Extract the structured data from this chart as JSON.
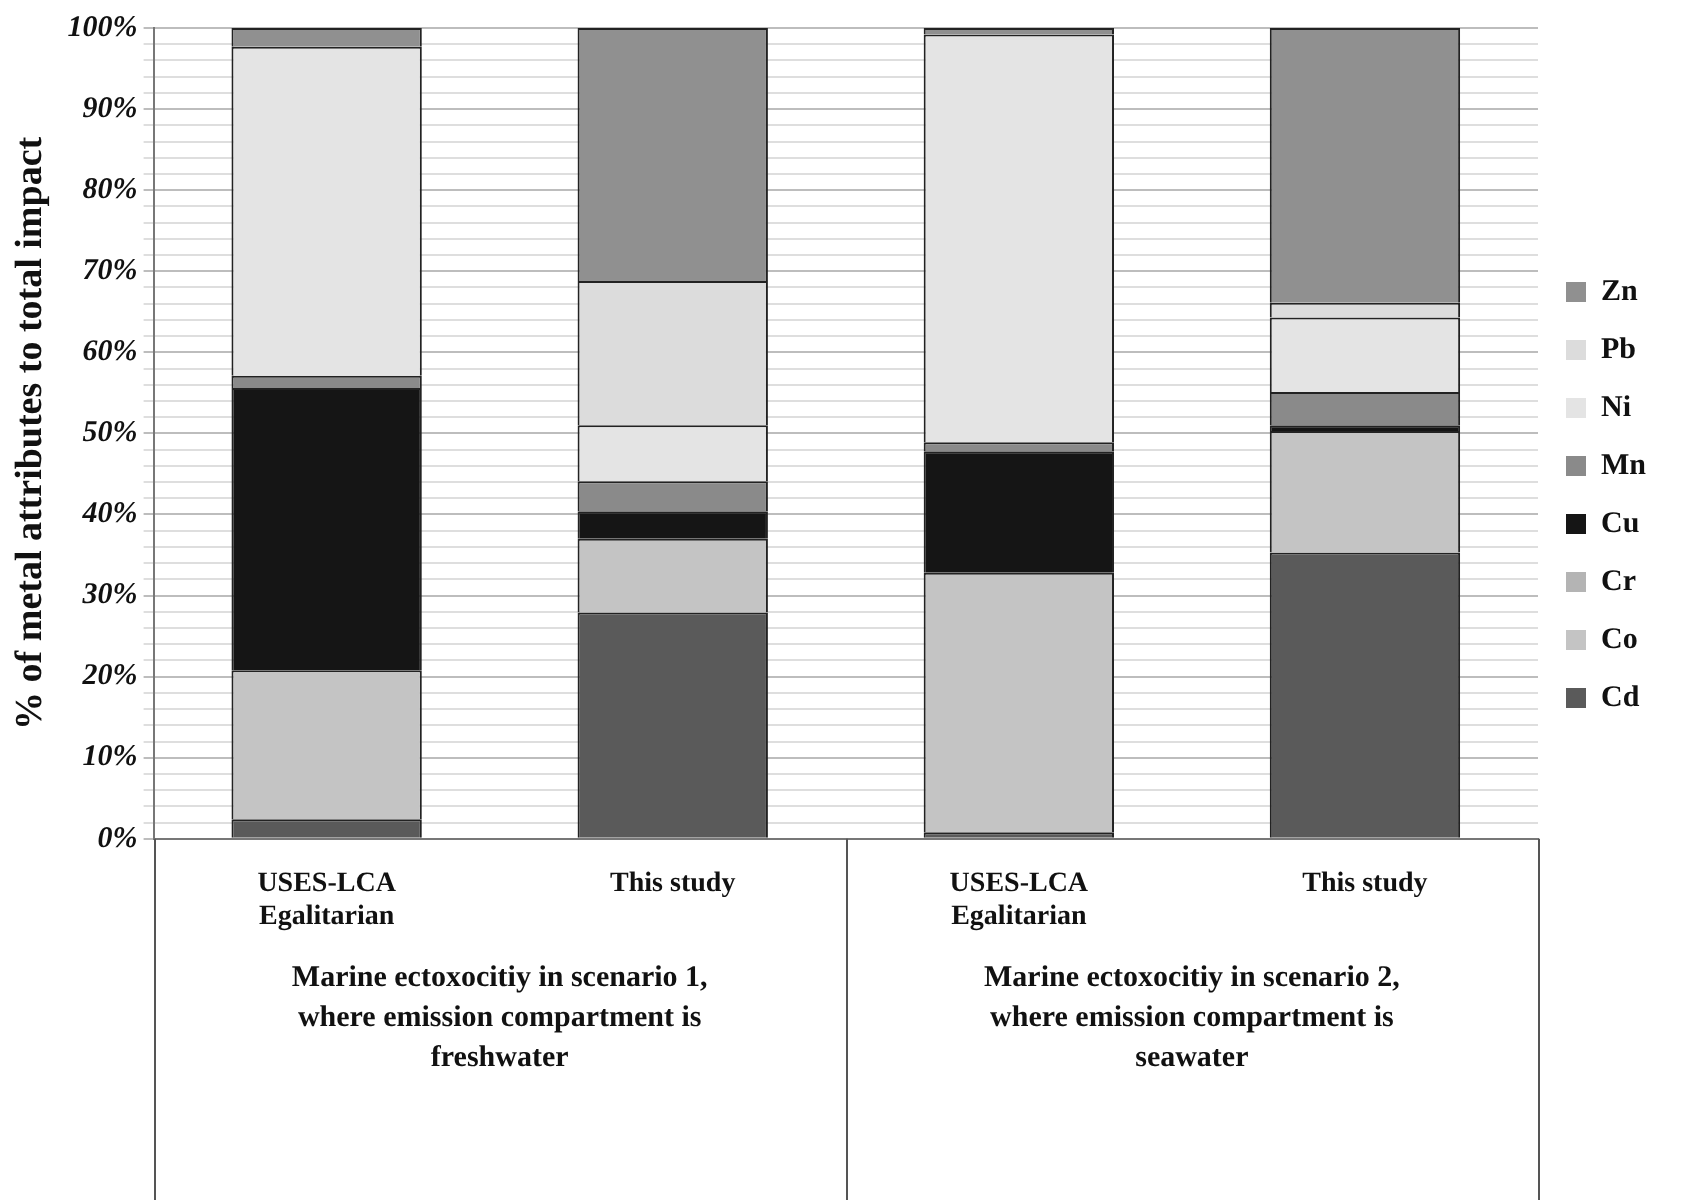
{
  "chart_data": {
    "type": "bar",
    "stacked": true,
    "ylabel": "% of metal attributes to total impact",
    "categories": [
      "USES-LCA\nEgalitarian",
      "This study",
      "USES-LCA\nEgalitarian",
      "This study"
    ],
    "series": [
      {
        "name": "Cd",
        "color": "#5a5a5a",
        "values": [
          2.4,
          27.9,
          0.8,
          35.3
        ]
      },
      {
        "name": "Co",
        "color": "#c4c4c4",
        "values": [
          18.4,
          9.1,
          32.0,
          15.0
        ]
      },
      {
        "name": "Cr",
        "color": "#b4b4b4",
        "values": [
          0,
          0,
          0,
          0
        ]
      },
      {
        "name": "Cu",
        "color": "#151515",
        "values": [
          34.8,
          3.4,
          15.0,
          0.7
        ]
      },
      {
        "name": "Mn",
        "color": "#8a8a8a",
        "values": [
          1.5,
          3.7,
          1.1,
          4.1
        ]
      },
      {
        "name": "Ni",
        "color": "#e4e4e4",
        "values": [
          40.6,
          6.9,
          50.3,
          9.2
        ]
      },
      {
        "name": "Pb",
        "color": "#dcdcdc",
        "values": [
          0,
          17.8,
          0,
          1.8
        ]
      },
      {
        "name": "Zn",
        "color": "#909090",
        "values": [
          2.3,
          31.2,
          0.8,
          33.9
        ]
      }
    ],
    "ylim": [
      0,
      100
    ],
    "yticks": [
      {
        "value": 0,
        "label": "0%"
      },
      {
        "value": 2,
        "label": null
      },
      {
        "value": 4,
        "label": null
      },
      {
        "value": 6,
        "label": null
      },
      {
        "value": 8,
        "label": null
      },
      {
        "value": 10,
        "label": "10%"
      },
      {
        "value": 12,
        "label": null
      },
      {
        "value": 14,
        "label": null
      },
      {
        "value": 16,
        "label": null
      },
      {
        "value": 18,
        "label": null
      },
      {
        "value": 20,
        "label": "20%"
      },
      {
        "value": 22,
        "label": null
      },
      {
        "value": 24,
        "label": null
      },
      {
        "value": 26,
        "label": null
      },
      {
        "value": 28,
        "label": null
      },
      {
        "value": 30,
        "label": "30%"
      },
      {
        "value": 32,
        "label": null
      },
      {
        "value": 34,
        "label": null
      },
      {
        "value": 36,
        "label": null
      },
      {
        "value": 38,
        "label": null
      },
      {
        "value": 40,
        "label": "40%"
      },
      {
        "value": 42,
        "label": null
      },
      {
        "value": 44,
        "label": null
      },
      {
        "value": 46,
        "label": null
      },
      {
        "value": 48,
        "label": null
      },
      {
        "value": 50,
        "label": "50%"
      },
      {
        "value": 52,
        "label": null
      },
      {
        "value": 54,
        "label": null
      },
      {
        "value": 56,
        "label": null
      },
      {
        "value": 58,
        "label": null
      },
      {
        "value": 60,
        "label": "60%"
      },
      {
        "value": 62,
        "label": null
      },
      {
        "value": 64,
        "label": null
      },
      {
        "value": 66,
        "label": null
      },
      {
        "value": 68,
        "label": null
      },
      {
        "value": 70,
        "label": "70%"
      },
      {
        "value": 72,
        "label": null
      },
      {
        "value": 74,
        "label": null
      },
      {
        "value": 76,
        "label": null
      },
      {
        "value": 78,
        "label": null
      },
      {
        "value": 80,
        "label": "80%"
      },
      {
        "value": 82,
        "label": null
      },
      {
        "value": 84,
        "label": null
      },
      {
        "value": 86,
        "label": null
      },
      {
        "value": 88,
        "label": null
      },
      {
        "value": 90,
        "label": "90%"
      },
      {
        "value": 92,
        "label": null
      },
      {
        "value": 94,
        "label": null
      },
      {
        "value": 96,
        "label": null
      },
      {
        "value": 98,
        "label": null
      },
      {
        "value": 100,
        "label": "100%"
      }
    ],
    "grid": "y",
    "legend": "right",
    "annotations": [
      "Marine ectoxocitiy in scenario 1, where emission compartment is freshwater",
      "Marine ectoxocitiy in scenario 2, where emission compartment is seawater"
    ]
  }
}
